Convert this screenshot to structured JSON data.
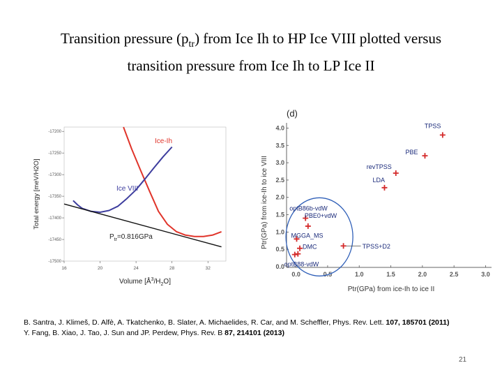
{
  "slide": {
    "title_part1": "Transition pressure (p",
    "title_sub": "tr",
    "title_part2": ") from Ice Ih to HP Ice VIII plotted versus",
    "title_line2": "transition pressure from Ice Ih to LP Ice II",
    "page_number": "21"
  },
  "references": {
    "ref1_text": "B. Santra, J. Klimeš, D. Alfè, A. Tkatchenko, B. Slater, A. Michaelides, R. Car, and M. Scheffler, Phys. Rev. Lett. ",
    "ref1_bold": "107, 185701 (2011)",
    "ref2_text": "Y. Fang,  B. Xiao, J. Tao, J. Sun and JP. Perdew, Phys. Rev. B  ",
    "ref2_bold": "87, 214101 (2013)"
  },
  "colors": {
    "ice_ih": "#e0342a",
    "ice_viii": "#3d3d9e",
    "tangent": "#111111",
    "point": "#d42a2a",
    "ellipse": "#2f5fb8",
    "text_blue": "#1a2a7a",
    "tick": "#555555"
  },
  "chart_data": [
    {
      "id": "energy_vs_volume",
      "type": "line",
      "xlabel_base": "Volume [Å",
      "xlabel_sup1": "3",
      "xlabel_mid": "/H",
      "xlabel_sub": "2",
      "xlabel_end": "O]",
      "ylabel": "Total energy [meV/H2O]",
      "xlim": [
        16,
        34
      ],
      "ylim": [
        -17500,
        -17190
      ],
      "x_ticks": [
        16,
        20,
        24,
        28,
        32
      ],
      "y_ticks": [
        -17200,
        -17250,
        -17300,
        -17350,
        -17400,
        -17450,
        -17500
      ],
      "series": [
        {
          "name": "Ice-Ih",
          "x": [
            22.6,
            23.5,
            24.5,
            25.5,
            26.5,
            27.5,
            28.5,
            29.5,
            30.5,
            31.5,
            32.5,
            33.5
          ],
          "y": [
            -17190,
            -17240,
            -17290,
            -17338,
            -17385,
            -17415,
            -17432,
            -17440,
            -17443,
            -17443,
            -17440,
            -17432
          ]
        },
        {
          "name": "Ice VIII",
          "x": [
            17,
            17.5,
            18,
            19,
            20,
            21,
            22,
            23,
            24,
            25,
            26,
            27,
            28
          ],
          "y": [
            -17360,
            -17370,
            -17378,
            -17385,
            -17387,
            -17383,
            -17373,
            -17355,
            -17335,
            -17310,
            -17284,
            -17259,
            -17236
          ]
        },
        {
          "name": "common tangent",
          "x": [
            16,
            33.5
          ],
          "y": [
            -17368,
            -17467
          ]
        }
      ],
      "annotation_label": "P",
      "annotation_sub": "tr",
      "annotation_value": "=0.816GPa"
    },
    {
      "id": "ptr_comparison",
      "type": "scatter",
      "panel_label": "(d)",
      "xlabel": "Ptr(GPa) from ice-Ih to ice II",
      "ylabel": "Ptr(GPa) from ice-Ih to ice VIII",
      "xlim": [
        -0.15,
        3.05
      ],
      "ylim": [
        -0.02,
        4.15
      ],
      "x_ticks": [
        0.0,
        0.5,
        1.0,
        1.5,
        2.0,
        2.5,
        3.0
      ],
      "y_ticks": [
        0.0,
        0.5,
        1.0,
        1.5,
        2.0,
        2.5,
        3.0,
        3.5,
        4.0
      ],
      "points": [
        {
          "label": "TPSS",
          "x": 2.32,
          "y": 3.8
        },
        {
          "label": "PBE",
          "x": 2.04,
          "y": 3.2
        },
        {
          "label": "revTPSS",
          "x": 1.58,
          "y": 2.7
        },
        {
          "label": "LDA",
          "x": 1.4,
          "y": 2.28
        },
        {
          "label": "optB86b-vdW",
          "x": 0.15,
          "y": 1.4
        },
        {
          "label": "PBE0+vdW",
          "x": 0.19,
          "y": 1.17
        },
        {
          "label": "MGGA_MS",
          "x": 0.01,
          "y": 0.8
        },
        {
          "label": "DMC",
          "x": 0.06,
          "y": 0.53
        },
        {
          "label": "TPSS+D2",
          "x": 0.75,
          "y": 0.6
        },
        {
          "label": "optB88-vdW",
          "x": -0.02,
          "y": 0.35
        },
        {
          "label": "optB88-vdW",
          "x": 0.03,
          "y": 0.37
        }
      ]
    }
  ]
}
